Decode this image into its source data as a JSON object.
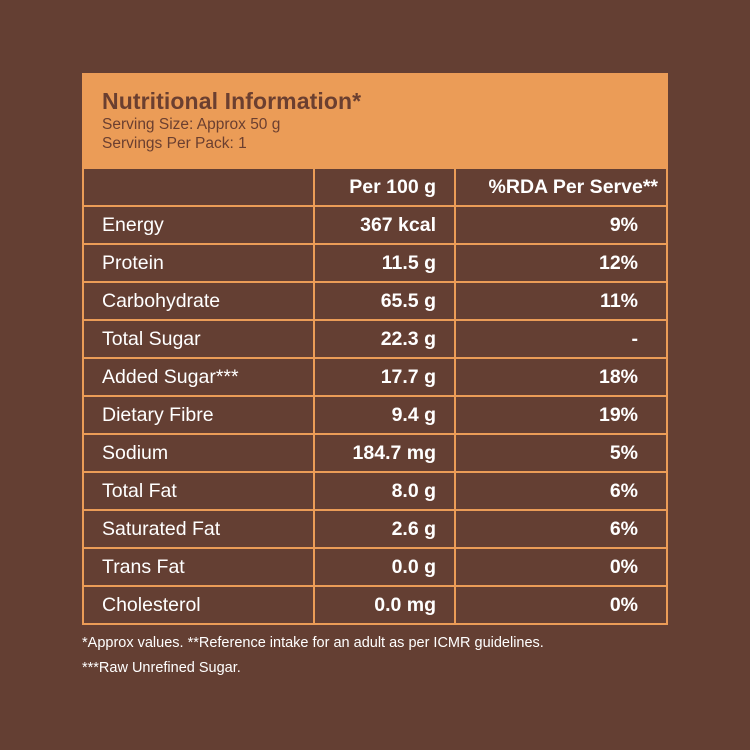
{
  "title": "Nutritional Information*",
  "serving_size": "Serving Size: Approx 50 g",
  "servings_per_pack": "Servings Per Pack: 1",
  "columns": [
    "",
    "Per 100 g",
    "%RDA Per Serve**"
  ],
  "rows": [
    {
      "name": "Energy",
      "per100": "367 kcal",
      "rda": "9%"
    },
    {
      "name": "Protein",
      "per100": "11.5 g",
      "rda": "12%"
    },
    {
      "name": "Carbohydrate",
      "per100": "65.5 g",
      "rda": "11%"
    },
    {
      "name": "Total Sugar",
      "per100": "22.3 g",
      "rda": "-"
    },
    {
      "name": "Added Sugar***",
      "per100": "17.7 g",
      "rda": "18%"
    },
    {
      "name": "Dietary Fibre",
      "per100": "9.4 g",
      "rda": "19%"
    },
    {
      "name": "Sodium",
      "per100": "184.7 mg",
      "rda": "5%"
    },
    {
      "name": "Total Fat",
      "per100": "8.0 g",
      "rda": "6%"
    },
    {
      "name": "Saturated Fat",
      "per100": "2.6 g",
      "rda": "6%"
    },
    {
      "name": "Trans Fat",
      "per100": "0.0 g",
      "rda": "0%"
    },
    {
      "name": "Cholesterol",
      "per100": "0.0 mg",
      "rda": "0%"
    }
  ],
  "footnotes": [
    "*Approx values. **Reference intake for an adult as per ICMR guidelines.",
    "***Raw Unrefined Sugar."
  ],
  "colors": {
    "background": "#643f33",
    "accent": "#eb9c57",
    "title_text": "#6b3f30"
  }
}
